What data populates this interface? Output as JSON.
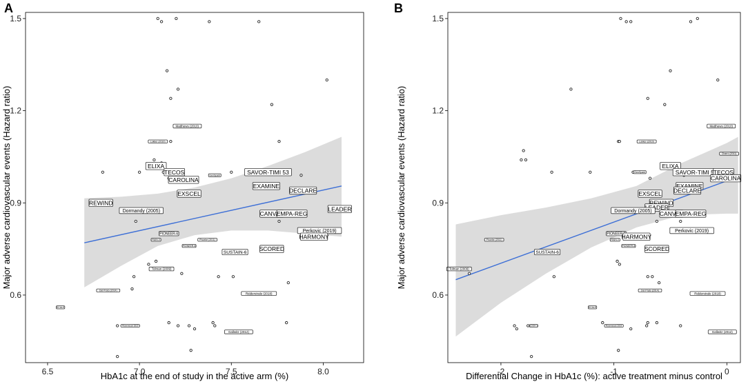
{
  "chart_data": [
    {
      "type": "scatter",
      "panel": "A",
      "xlabel": "HbA1c at the end of study in the active arm (%)",
      "ylabel": "Major adverse cardiovascular events (Hazard ratio)",
      "xlim": [
        6.38,
        8.22
      ],
      "ylim": [
        0.38,
        1.52
      ],
      "xticks": [
        {
          "v": 6.5,
          "t": "6.5"
        },
        {
          "v": 7.0,
          "t": "7.0"
        },
        {
          "v": 7.5,
          "t": "7.5"
        },
        {
          "v": 8.0,
          "t": "8.0"
        }
      ],
      "yticks": [
        {
          "v": 0.6,
          "t": "0.6"
        },
        {
          "v": 0.9,
          "t": "0.9"
        },
        {
          "v": 1.2,
          "t": "1.2"
        },
        {
          "v": 1.5,
          "t": "1.5"
        }
      ],
      "line_color": "#3d6fd6",
      "band_color": "#dcdcdc",
      "fit": {
        "x": [
          6.7,
          8.1
        ],
        "y": [
          0.77,
          0.955
        ]
      },
      "band": {
        "x": [
          6.7,
          6.9,
          7.1,
          7.3,
          7.5,
          7.7,
          7.9,
          8.1
        ],
        "upper": [
          0.915,
          0.92,
          0.93,
          0.95,
          0.98,
          1.02,
          1.065,
          1.115
        ],
        "lower": [
          0.625,
          0.695,
          0.76,
          0.795,
          0.81,
          0.81,
          0.8,
          0.79
        ]
      },
      "points": [
        {
          "x": 7.1,
          "y": 1.5
        },
        {
          "x": 7.2,
          "y": 1.5
        },
        {
          "x": 7.38,
          "y": 1.49
        },
        {
          "x": 7.12,
          "y": 1.49
        },
        {
          "x": 7.65,
          "y": 1.49
        },
        {
          "x": 7.15,
          "y": 1.33
        },
        {
          "x": 8.02,
          "y": 1.3
        },
        {
          "x": 7.21,
          "y": 1.27
        },
        {
          "x": 7.17,
          "y": 1.24
        },
        {
          "x": 7.72,
          "y": 1.22
        },
        {
          "x": 7.76,
          "y": 1.1
        },
        {
          "x": 7.17,
          "y": 1.1
        },
        {
          "x": 7.08,
          "y": 1.04
        },
        {
          "x": 7.12,
          "y": 1.03
        },
        {
          "x": 6.8,
          "y": 1.0
        },
        {
          "x": 7.0,
          "y": 1.0
        },
        {
          "x": 7.13,
          "y": 1.0
        },
        {
          "x": 7.5,
          "y": 1.0
        },
        {
          "x": 7.88,
          "y": 0.99
        },
        {
          "x": 7.16,
          "y": 0.98
        },
        {
          "x": 6.98,
          "y": 0.84
        },
        {
          "x": 7.76,
          "y": 0.84
        },
        {
          "x": 7.05,
          "y": 0.7
        },
        {
          "x": 7.09,
          "y": 0.71
        },
        {
          "x": 7.23,
          "y": 0.67
        },
        {
          "x": 6.97,
          "y": 0.66
        },
        {
          "x": 7.43,
          "y": 0.66
        },
        {
          "x": 7.51,
          "y": 0.66
        },
        {
          "x": 7.81,
          "y": 0.64
        },
        {
          "x": 6.96,
          "y": 0.62
        },
        {
          "x": 6.88,
          "y": 0.5
        },
        {
          "x": 6.92,
          "y": 0.5
        },
        {
          "x": 6.99,
          "y": 0.5
        },
        {
          "x": 7.16,
          "y": 0.51
        },
        {
          "x": 7.27,
          "y": 0.5
        },
        {
          "x": 7.4,
          "y": 0.51
        },
        {
          "x": 7.41,
          "y": 0.5
        },
        {
          "x": 7.8,
          "y": 0.51
        },
        {
          "x": 7.21,
          "y": 0.5
        },
        {
          "x": 7.3,
          "y": 0.49
        },
        {
          "x": 7.28,
          "y": 0.42
        },
        {
          "x": 6.88,
          "y": 0.4
        }
      ],
      "labels": [
        {
          "t": "Matthews (2010)",
          "x": 7.26,
          "y": 1.15,
          "s": 4.5
        },
        {
          "t": "Lokker (2010)",
          "x": 7.1,
          "y": 1.1,
          "s": 3.5
        },
        {
          "t": "ELIXA",
          "x": 7.09,
          "y": 1.02,
          "s": 8.5
        },
        {
          "t": "TECOS",
          "x": 7.19,
          "y": 1.0,
          "s": 8.5
        },
        {
          "t": "CAROLINA",
          "x": 7.24,
          "y": 0.975,
          "s": 8.5
        },
        {
          "t": "GenSpark",
          "x": 7.41,
          "y": 0.99,
          "s": 3.5
        },
        {
          "t": "SAVOR-TIMI 53",
          "x": 7.7,
          "y": 1.0,
          "s": 8.5
        },
        {
          "t": "EXAMINE",
          "x": 7.69,
          "y": 0.955,
          "s": 8.5
        },
        {
          "t": "EXSCEL",
          "x": 7.27,
          "y": 0.93,
          "s": 8.5
        },
        {
          "t": "DECLARE",
          "x": 7.89,
          "y": 0.94,
          "s": 8.5
        },
        {
          "t": "REWIND",
          "x": 6.79,
          "y": 0.9,
          "s": 8.5
        },
        {
          "t": "Dormandy (2005)",
          "x": 7.01,
          "y": 0.875,
          "s": 7
        },
        {
          "t": "LEADER",
          "x": 8.09,
          "y": 0.88,
          "s": 8.5
        },
        {
          "t": "CANVAS",
          "x": 7.72,
          "y": 0.865,
          "s": 8.5
        },
        {
          "t": "EMPA-REG",
          "x": 7.83,
          "y": 0.865,
          "s": 8.5
        },
        {
          "t": "PIONEER-6",
          "x": 7.16,
          "y": 0.8,
          "s": 5
        },
        {
          "t": "RAIN-0",
          "x": 7.09,
          "y": 0.78,
          "s": 3.5
        },
        {
          "t": "Phoebe (2011)",
          "x": 7.37,
          "y": 0.78,
          "s": 3.5
        },
        {
          "t": "Perkovic (2019)",
          "x": 7.98,
          "y": 0.81,
          "s": 7
        },
        {
          "t": "HARMONY",
          "x": 7.95,
          "y": 0.79,
          "s": 8.5
        },
        {
          "t": "PIONEER-8",
          "x": 7.27,
          "y": 0.76,
          "s": 3.5
        },
        {
          "t": "SUSTAIN-6",
          "x": 7.52,
          "y": 0.74,
          "s": 6.5
        },
        {
          "t": "SCORED",
          "x": 7.72,
          "y": 0.75,
          "s": 8.5
        },
        {
          "t": "Tolman (2009)",
          "x": 7.12,
          "y": 0.685,
          "s": 4.5
        },
        {
          "t": "Del Prato (2014)",
          "x": 6.83,
          "y": 0.615,
          "s": 3.5
        },
        {
          "t": "Ridderstrale (2018)",
          "x": 7.65,
          "y": 0.605,
          "s": 4.5
        },
        {
          "t": "SCALE",
          "x": 6.57,
          "y": 0.56,
          "s": 3.5
        },
        {
          "t": "Rosenstock 2019",
          "x": 6.95,
          "y": 0.5,
          "s": 3
        },
        {
          "t": "Gallwitz (2012)",
          "x": 7.54,
          "y": 0.48,
          "s": 4.5
        }
      ]
    },
    {
      "type": "scatter",
      "panel": "B",
      "xlabel": "Differential Change in HbA1c (%): active treatment minus control",
      "ylabel": "Major adverse cardiovascular events (Hazard ratio)",
      "xlim": [
        -2.47,
        0.12
      ],
      "ylim": [
        0.38,
        1.52
      ],
      "xticks": [
        {
          "v": -2,
          "t": "-2"
        },
        {
          "v": -1,
          "t": "-1"
        },
        {
          "v": 0,
          "t": "0"
        }
      ],
      "yticks": [
        {
          "v": 0.6,
          "t": "0.6"
        },
        {
          "v": 0.9,
          "t": "0.9"
        },
        {
          "v": 1.2,
          "t": "1.2"
        },
        {
          "v": 1.5,
          "t": "1.5"
        }
      ],
      "line_color": "#3d6fd6",
      "band_color": "#dcdcdc",
      "fit": {
        "x": [
          -2.4,
          0.1
        ],
        "y": [
          0.65,
          0.985
        ]
      },
      "band": {
        "x": [
          -2.4,
          -2.0,
          -1.6,
          -1.2,
          -0.8,
          -0.4,
          0.0,
          0.1
        ],
        "upper": [
          0.83,
          0.86,
          0.885,
          0.915,
          0.955,
          1.03,
          1.095,
          1.115
        ],
        "lower": [
          0.465,
          0.575,
          0.67,
          0.755,
          0.82,
          0.86,
          0.865,
          0.865
        ]
      },
      "points": [
        {
          "x": -0.94,
          "y": 1.5
        },
        {
          "x": -0.85,
          "y": 1.49
        },
        {
          "x": -0.89,
          "y": 1.49
        },
        {
          "x": -0.32,
          "y": 1.49
        },
        {
          "x": -0.26,
          "y": 1.5
        },
        {
          "x": -0.5,
          "y": 1.33
        },
        {
          "x": -0.08,
          "y": 1.3
        },
        {
          "x": -1.38,
          "y": 1.27
        },
        {
          "x": -0.7,
          "y": 1.24
        },
        {
          "x": -0.55,
          "y": 1.22
        },
        {
          "x": -0.96,
          "y": 1.1
        },
        {
          "x": -0.95,
          "y": 1.1
        },
        {
          "x": -1.8,
          "y": 1.07
        },
        {
          "x": -1.82,
          "y": 1.04
        },
        {
          "x": -1.78,
          "y": 1.04
        },
        {
          "x": -1.55,
          "y": 1.0
        },
        {
          "x": -1.21,
          "y": 1.0
        },
        {
          "x": -0.83,
          "y": 1.0
        },
        {
          "x": -0.38,
          "y": 0.99
        },
        {
          "x": -0.68,
          "y": 0.98
        },
        {
          "x": -0.62,
          "y": 0.84
        },
        {
          "x": -0.41,
          "y": 0.84
        },
        {
          "x": -0.95,
          "y": 0.7
        },
        {
          "x": -0.97,
          "y": 0.71
        },
        {
          "x": -0.7,
          "y": 0.66
        },
        {
          "x": -0.66,
          "y": 0.66
        },
        {
          "x": -0.6,
          "y": 0.64
        },
        {
          "x": -1.53,
          "y": 0.66
        },
        {
          "x": -2.28,
          "y": 0.67
        },
        {
          "x": -1.1,
          "y": 0.51
        },
        {
          "x": -1.76,
          "y": 0.5
        },
        {
          "x": -1.88,
          "y": 0.5
        },
        {
          "x": -1.86,
          "y": 0.49
        },
        {
          "x": -0.7,
          "y": 0.51
        },
        {
          "x": -0.71,
          "y": 0.5
        },
        {
          "x": -0.62,
          "y": 0.51
        },
        {
          "x": -0.41,
          "y": 0.5
        },
        {
          "x": -0.85,
          "y": 0.49
        },
        {
          "x": -1.73,
          "y": 0.4
        },
        {
          "x": -0.96,
          "y": 0.42
        }
      ],
      "labels": [
        {
          "t": "Matthews (2010)",
          "x": -0.05,
          "y": 1.15,
          "s": 4.5
        },
        {
          "t": "Lokker (2010)",
          "x": -0.71,
          "y": 1.1,
          "s": 3.5
        },
        {
          "t": "Charro (2011)",
          "x": 0.02,
          "y": 1.06,
          "s": 3.5
        },
        {
          "t": "GenSpark",
          "x": -0.77,
          "y": 1.0,
          "s": 3.5
        },
        {
          "t": "ELIXA",
          "x": -0.5,
          "y": 1.02,
          "s": 8.5
        },
        {
          "t": "SAVOR-TIMI 53",
          "x": -0.27,
          "y": 1.0,
          "s": 8.5
        },
        {
          "t": "TECOS",
          "x": -0.03,
          "y": 1.0,
          "s": 8.5
        },
        {
          "t": "CAROLINA",
          "x": -0.01,
          "y": 0.98,
          "s": 8.5
        },
        {
          "t": "EXAMINE",
          "x": -0.33,
          "y": 0.955,
          "s": 8.5
        },
        {
          "t": "DECLARE",
          "x": -0.35,
          "y": 0.94,
          "s": 8.5
        },
        {
          "t": "EXSCEL",
          "x": -0.68,
          "y": 0.93,
          "s": 8.5
        },
        {
          "t": "REWIND",
          "x": -0.58,
          "y": 0.9,
          "s": 8.5
        },
        {
          "t": "LEADER",
          "x": -0.62,
          "y": 0.885,
          "s": 8.5
        },
        {
          "t": "Dormandy (2005)",
          "x": -0.83,
          "y": 0.875,
          "s": 7
        },
        {
          "t": "CANVAS",
          "x": -0.49,
          "y": 0.865,
          "s": 8.5
        },
        {
          "t": "EMPA-REG",
          "x": -0.32,
          "y": 0.865,
          "s": 8.5
        },
        {
          "t": "Perkovic (2019)",
          "x": -0.31,
          "y": 0.81,
          "s": 7
        },
        {
          "t": "PIONEER-6",
          "x": -0.98,
          "y": 0.8,
          "s": 5
        },
        {
          "t": "HARMONY",
          "x": -0.8,
          "y": 0.79,
          "s": 8.5
        },
        {
          "t": "RAIN-0",
          "x": -0.99,
          "y": 0.78,
          "s": 3.5
        },
        {
          "t": "Phoebe (2011)",
          "x": -2.06,
          "y": 0.78,
          "s": 3.5
        },
        {
          "t": "PIONEER-8",
          "x": -0.87,
          "y": 0.76,
          "s": 3.5
        },
        {
          "t": "SUSTAIN-6",
          "x": -1.59,
          "y": 0.74,
          "s": 6.5
        },
        {
          "t": "SCORED",
          "x": -0.62,
          "y": 0.75,
          "s": 8.5
        },
        {
          "t": "Tolman (2009)",
          "x": -2.37,
          "y": 0.685,
          "s": 4.5
        },
        {
          "t": "Del Prato (2014)",
          "x": -0.68,
          "y": 0.615,
          "s": 3.5
        },
        {
          "t": "Ridderstrale (2018)",
          "x": -0.17,
          "y": 0.605,
          "s": 4.5
        },
        {
          "t": "SCALE",
          "x": -1.19,
          "y": 0.56,
          "s": 3.5
        },
        {
          "t": "LOOK-1",
          "x": -1.71,
          "y": 0.5,
          "s": 3
        },
        {
          "t": "Rosenstock 2019",
          "x": -1.0,
          "y": 0.5,
          "s": 3
        },
        {
          "t": "Gallwitz (2012)",
          "x": -0.04,
          "y": 0.48,
          "s": 4.5
        }
      ]
    }
  ]
}
